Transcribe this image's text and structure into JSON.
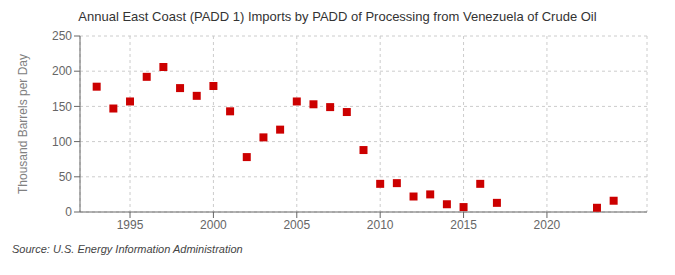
{
  "chart_data": {
    "type": "scatter",
    "title": "Annual East Coast (PADD 1) Imports by PADD of Processing from Venezuela of Crude Oil",
    "ylabel": "Thousand Barrels per Day",
    "annotation": "Source: U.S. Energy Information Administration",
    "x": [
      1993,
      1994,
      1995,
      1996,
      1997,
      1998,
      1999,
      2000,
      2001,
      2002,
      2003,
      2004,
      2005,
      2006,
      2007,
      2008,
      2009,
      2010,
      2011,
      2012,
      2013,
      2014,
      2015,
      2016,
      2017,
      2023,
      2024
    ],
    "values": [
      178,
      147,
      157,
      192,
      206,
      176,
      165,
      179,
      143,
      78,
      106,
      117,
      157,
      153,
      149,
      142,
      88,
      40,
      41,
      22,
      25,
      11,
      7,
      40,
      13,
      6,
      16
    ],
    "color": "#cc0000",
    "marker": "square",
    "xlim": [
      1992,
      2026
    ],
    "xticks": [
      1995,
      2000,
      2005,
      2010,
      2015,
      2020
    ],
    "ylim": [
      0,
      250
    ],
    "yticks": [
      0,
      50,
      100,
      150,
      200,
      250
    ],
    "grid": true
  }
}
